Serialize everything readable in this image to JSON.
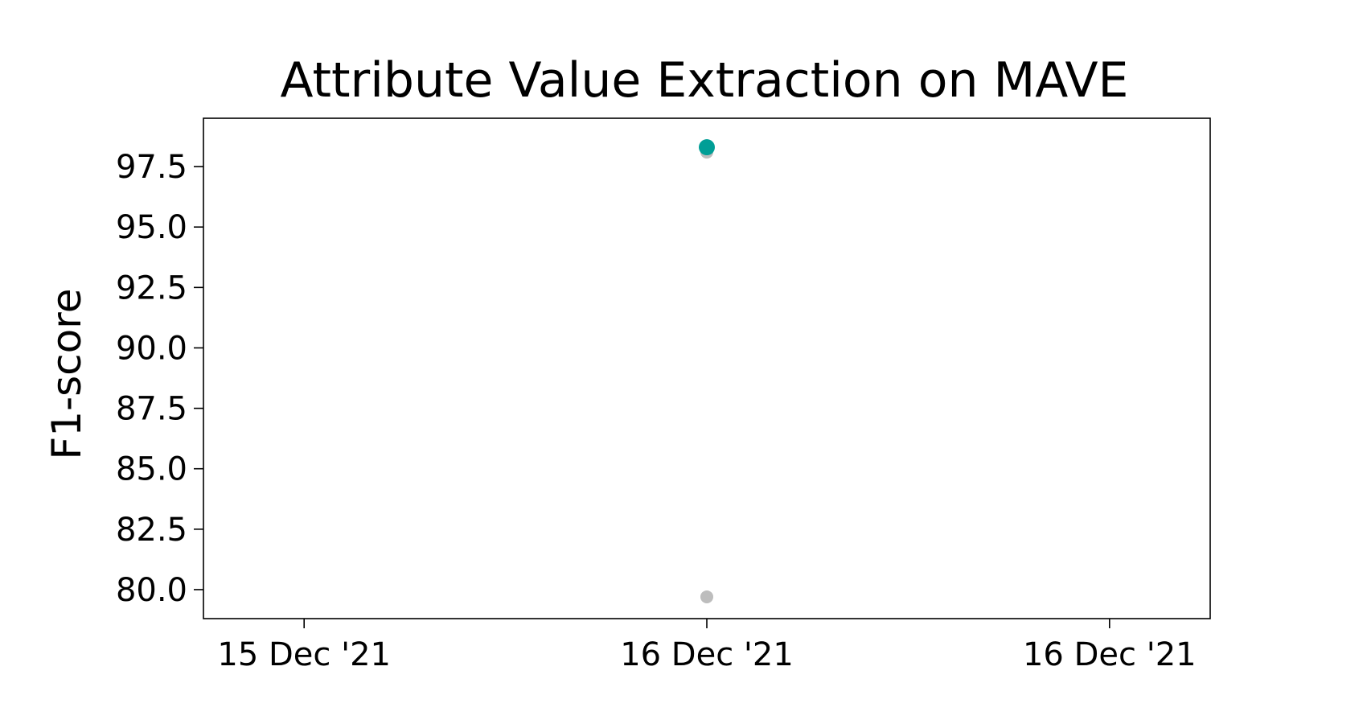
{
  "chart_data": {
    "type": "scatter",
    "title": "Attribute Value Extraction on MAVE",
    "xlabel": "",
    "ylabel": "F1-score",
    "x_tick_labels": [
      "15 Dec '21",
      "16 Dec '21",
      "16 Dec '21"
    ],
    "x_ticks": [
      -1,
      0,
      1
    ],
    "xlim": [
      -1.25,
      1.25
    ],
    "y_ticks": [
      80.0,
      82.5,
      85.0,
      87.5,
      90.0,
      92.5,
      95.0,
      97.5
    ],
    "y_tick_labels": [
      "80.0",
      "82.5",
      "85.0",
      "87.5",
      "90.0",
      "92.5",
      "95.0",
      "97.5"
    ],
    "ylim": [
      78.8,
      99.5
    ],
    "grid": false,
    "legend": "none",
    "points": [
      {
        "x": 0,
        "y": 98.1,
        "color": "#bdbdbd",
        "role": "other"
      },
      {
        "x": 0,
        "y": 79.7,
        "color": "#bdbdbd",
        "role": "other"
      },
      {
        "x": 0,
        "y": 98.3,
        "color": "#009e96",
        "role": "highlight"
      }
    ]
  }
}
